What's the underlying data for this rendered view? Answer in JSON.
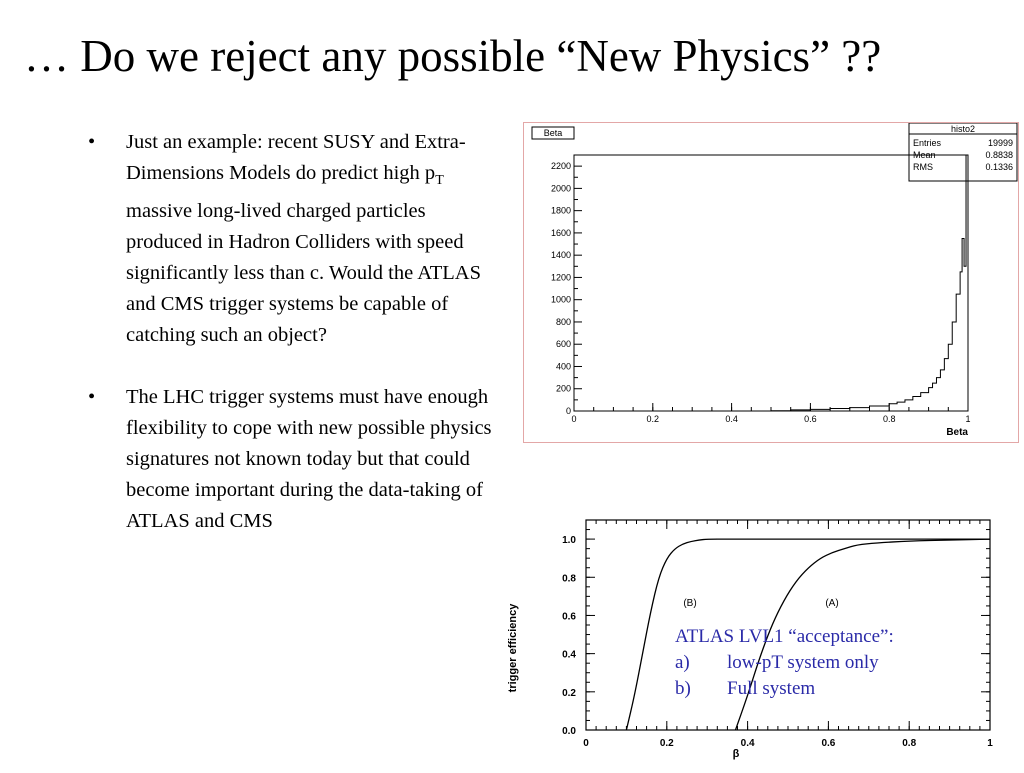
{
  "slide": {
    "title": "… Do we reject any possible “New Physics” ??",
    "bullet_symbol": "•",
    "bullets": [
      {
        "before": "Just an example: recent SUSY and Extra-Dimensions Models do predict high p",
        "sub": "T",
        "after": " massive long-lived charged particles produced in Hadron Colliders with speed significantly less than c. Would the ATLAS and CMS trigger systems be capable of catching such an object?"
      },
      {
        "text": "The LHC trigger systems must have enough flexibility to cope with new possible physics signatures not known today but that could become important during the data-taking of ATLAS and CMS"
      }
    ],
    "annotation": {
      "title": "ATLAS LVL1 “acceptance”:",
      "items": [
        {
          "label": "a)",
          "text": "low-pT system only"
        },
        {
          "label": "b)",
          "text": "Full system"
        }
      ],
      "color": "#2a2aa8"
    }
  },
  "chart_data": [
    {
      "type": "bar",
      "title": "Beta",
      "xlabel": "Beta",
      "xlim": [
        0,
        1
      ],
      "ylim": [
        0,
        2300
      ],
      "x_ticks": [
        "0",
        "0.2",
        "0.4",
        "0.6",
        "0.8",
        "1"
      ],
      "y_ticks": [
        "0",
        "200",
        "400",
        "600",
        "800",
        "1000",
        "1200",
        "1400",
        "1600",
        "1800",
        "2000",
        "2200"
      ],
      "stats_box": {
        "name": "histo2",
        "rows": [
          {
            "label": "Entries",
            "value": "19999"
          },
          {
            "label": "Mean",
            "value": "0.8838"
          },
          {
            "label": "RMS",
            "value": "0.1336"
          }
        ]
      },
      "series": [
        {
          "x": [
            0.5,
            0.55,
            0.6,
            0.65,
            0.7,
            0.75,
            0.8,
            0.82,
            0.84,
            0.86,
            0.88,
            0.9,
            0.91,
            0.92,
            0.93,
            0.94,
            0.95,
            0.96,
            0.97,
            0.98,
            0.985,
            0.99,
            0.995,
            1.0
          ],
          "values": [
            2,
            10,
            15,
            22,
            30,
            45,
            65,
            80,
            100,
            130,
            165,
            210,
            250,
            300,
            370,
            470,
            600,
            800,
            1050,
            1250,
            1550,
            1300,
            2300,
            0
          ]
        }
      ]
    },
    {
      "type": "line",
      "xlabel": "β",
      "ylabel": "trigger efficiency",
      "xlim": [
        0,
        1
      ],
      "ylim": [
        0,
        1.1
      ],
      "x_ticks": [
        "0",
        "0.2",
        "0.4",
        "0.6",
        "0.8",
        "1"
      ],
      "y_ticks": [
        "0.0",
        "0.2",
        "0.4",
        "0.6",
        "0.8",
        "1.0"
      ],
      "series": [
        {
          "name": "(B)",
          "x": [
            0.1,
            0.12,
            0.14,
            0.16,
            0.18,
            0.2,
            0.22,
            0.24,
            0.26,
            0.28,
            0.3,
            0.35,
            0.4,
            1.0
          ],
          "values": [
            0.0,
            0.18,
            0.4,
            0.62,
            0.8,
            0.9,
            0.95,
            0.975,
            0.988,
            0.995,
            1.0,
            1.0,
            1.0,
            1.0
          ]
        },
        {
          "name": "(A)",
          "x": [
            0.37,
            0.4,
            0.43,
            0.46,
            0.49,
            0.52,
            0.55,
            0.58,
            0.61,
            0.64,
            0.67,
            0.72,
            0.8,
            0.9,
            1.0
          ],
          "values": [
            0.0,
            0.18,
            0.38,
            0.55,
            0.68,
            0.78,
            0.85,
            0.9,
            0.93,
            0.95,
            0.97,
            0.98,
            0.99,
            0.995,
            1.0
          ]
        }
      ]
    }
  ]
}
